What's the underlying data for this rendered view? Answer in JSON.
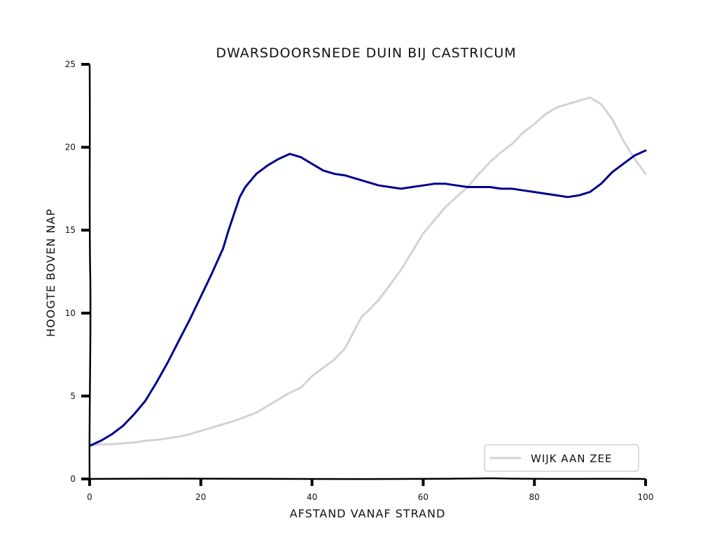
{
  "chart_data": {
    "type": "line",
    "title": "DWARSDOORSNEDE DUIN BIJ CASTRICUM",
    "xlabel": "AFSTAND VANAF STRAND",
    "ylabel": "HOOGTE BOVEN NAP",
    "xlim": [
      0,
      100
    ],
    "ylim": [
      0,
      25
    ],
    "xticks": [
      "0",
      "20",
      "40",
      "60",
      "80",
      "100"
    ],
    "yticks": [
      "0",
      "5",
      "10",
      "15",
      "20",
      "25"
    ],
    "grid": false,
    "legend": {
      "placement": "bottom-right",
      "entries": [
        "WIJK AAN ZEE"
      ]
    },
    "series": [
      {
        "color": "#00008b",
        "x": [
          0,
          2,
          4,
          6,
          8,
          10,
          12,
          14,
          16,
          18,
          20,
          22,
          24,
          25,
          26,
          27,
          28,
          30,
          32,
          34,
          36,
          38,
          40,
          42,
          44,
          46,
          48,
          50,
          52,
          54,
          56,
          58,
          60,
          62,
          64,
          66,
          68,
          70,
          72,
          74,
          76,
          78,
          80,
          82,
          84,
          86,
          88,
          90,
          92,
          94,
          96,
          98,
          100
        ],
        "y": [
          2.0,
          2.3,
          2.7,
          3.2,
          3.9,
          4.7,
          5.8,
          7.0,
          8.3,
          9.6,
          11.0,
          12.4,
          13.9,
          15.0,
          16.0,
          17.0,
          17.6,
          18.4,
          18.9,
          19.3,
          19.6,
          19.4,
          19.0,
          18.6,
          18.4,
          18.3,
          18.1,
          17.9,
          17.7,
          17.6,
          17.5,
          17.6,
          17.7,
          17.8,
          17.8,
          17.7,
          17.6,
          17.6,
          17.6,
          17.5,
          17.5,
          17.4,
          17.3,
          17.2,
          17.1,
          17.0,
          17.1,
          17.3,
          17.8,
          18.5,
          19.0,
          19.5,
          19.8
        ]
      },
      {
        "name": "WIJK AAN ZEE",
        "color": "#d3d3d3",
        "x": [
          0,
          2,
          4,
          6,
          8,
          10,
          12,
          14,
          16,
          18,
          20,
          22,
          24,
          26,
          28,
          30,
          32,
          34,
          36,
          38,
          40,
          42,
          44,
          46,
          48,
          49,
          50,
          52,
          54,
          56,
          58,
          60,
          62,
          64,
          66,
          68,
          70,
          72,
          74,
          76,
          78,
          80,
          82,
          84,
          86,
          88,
          90,
          92,
          94,
          96,
          98,
          100
        ],
        "y": [
          2.0,
          2.1,
          2.1,
          2.15,
          2.2,
          2.3,
          2.35,
          2.45,
          2.55,
          2.7,
          2.9,
          3.1,
          3.3,
          3.5,
          3.75,
          4.0,
          4.4,
          4.8,
          5.2,
          5.5,
          6.2,
          6.7,
          7.2,
          7.9,
          9.2,
          9.8,
          10.1,
          10.8,
          11.7,
          12.6,
          13.7,
          14.8,
          15.6,
          16.4,
          17.0,
          17.6,
          18.4,
          19.1,
          19.7,
          20.2,
          20.9,
          21.4,
          22.0,
          22.4,
          22.6,
          22.8,
          23.0,
          22.6,
          21.7,
          20.4,
          19.3,
          18.4
        ]
      }
    ]
  }
}
